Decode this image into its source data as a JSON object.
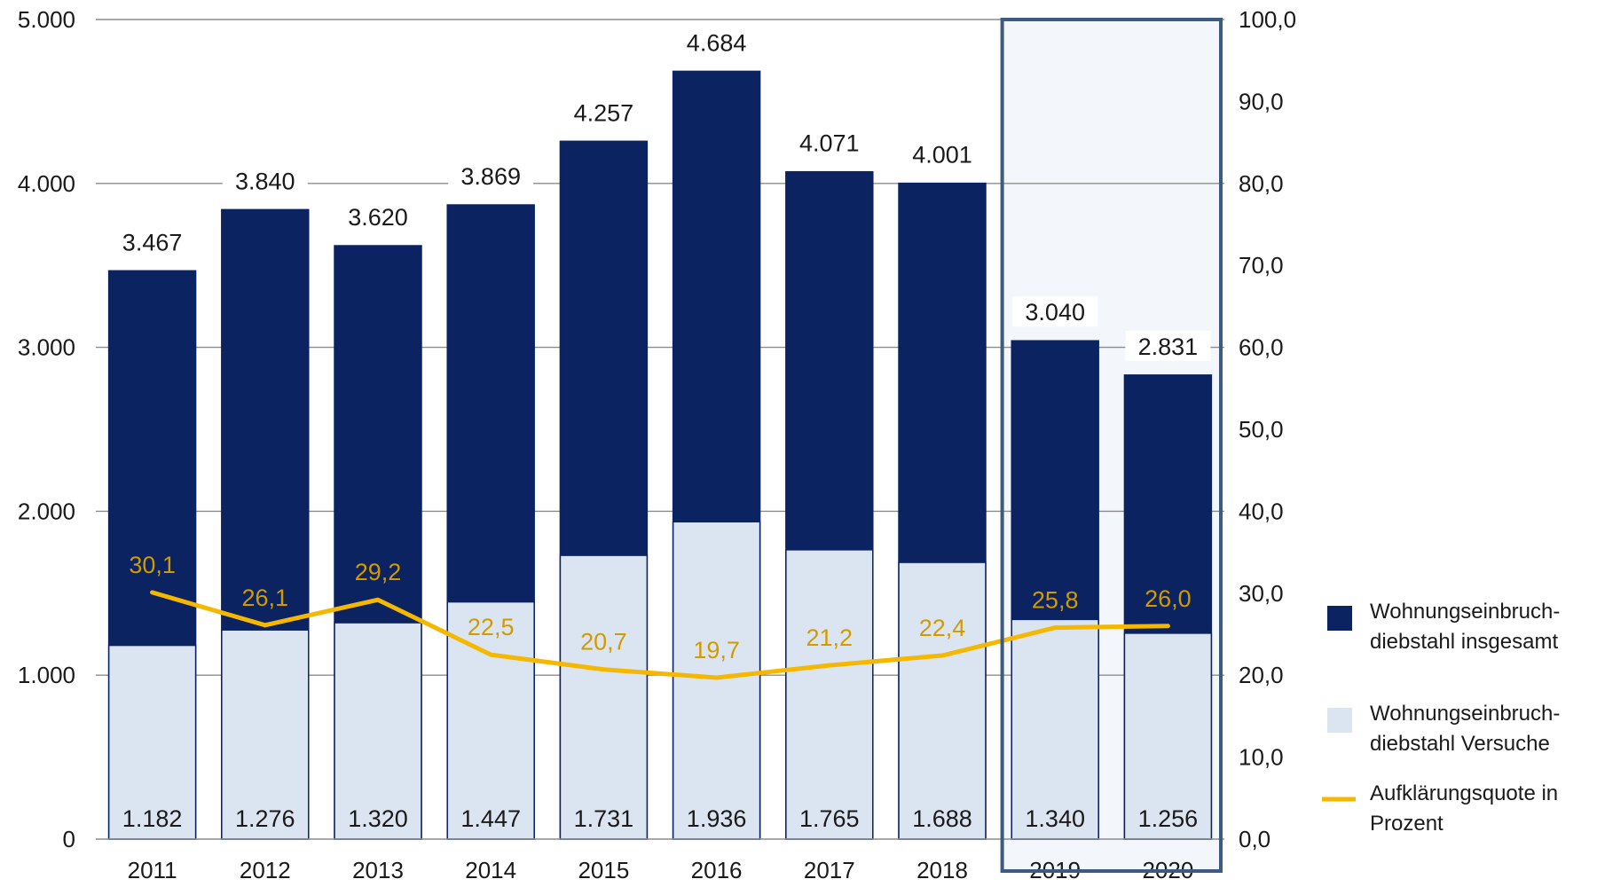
{
  "chart_data": {
    "type": "bar",
    "categories": [
      "2011",
      "2012",
      "2013",
      "2014",
      "2015",
      "2016",
      "2017",
      "2018",
      "2019",
      "2020"
    ],
    "series": [
      {
        "name": "Wohnungseinbruch-diebstahl insgesamt",
        "values": [
          3467,
          3840,
          3620,
          3869,
          4257,
          4684,
          4071,
          4001,
          3040,
          2831
        ],
        "labels": [
          "3.467",
          "3.840",
          "3.620",
          "3.869",
          "4.257",
          "4.684",
          "4.071",
          "4.001",
          "3.040",
          "2.831"
        ],
        "color": "#0b2360",
        "chart_type": "bar"
      },
      {
        "name": "Wohnungseinbruch-diebstahl Versuche",
        "values": [
          1182,
          1276,
          1320,
          1447,
          1731,
          1936,
          1765,
          1688,
          1340,
          1256
        ],
        "labels": [
          "1.182",
          "1.276",
          "1.320",
          "1.447",
          "1.731",
          "1.936",
          "1.765",
          "1.688",
          "1.340",
          "1.256"
        ],
        "color": "#dbe4f1",
        "chart_type": "bar"
      },
      {
        "name": "Aufklärungsquote in Prozent",
        "values": [
          30.1,
          26.1,
          29.2,
          22.5,
          20.7,
          19.7,
          21.2,
          22.4,
          25.8,
          26.0
        ],
        "labels": [
          "30,1",
          "26,1",
          "29,2",
          "22,5",
          "20,7",
          "19,7",
          "21,2",
          "22,4",
          "25,8",
          "26,0"
        ],
        "color": "#f5b800",
        "label_color": "#d19b00",
        "chart_type": "line",
        "axis": "right"
      }
    ],
    "y_left": {
      "ylim": [
        0,
        5000
      ],
      "ticks": [
        0,
        1000,
        2000,
        3000,
        4000,
        5000
      ],
      "tick_labels": [
        "0",
        "1.000",
        "2.000",
        "3.000",
        "4.000",
        "5.000"
      ]
    },
    "y_right": {
      "ylim": [
        0,
        100
      ],
      "ticks": [
        0,
        10,
        20,
        30,
        40,
        50,
        60,
        70,
        80,
        90,
        100
      ],
      "tick_labels": [
        "0,0",
        "10,0",
        "20,0",
        "30,0",
        "40,0",
        "50,0",
        "60,0",
        "70,0",
        "80,0",
        "90,0",
        "100,0"
      ]
    },
    "grid": true,
    "highlight_categories": [
      "2019",
      "2020"
    ],
    "highlight_color": "#3d5a80",
    "legend": [
      {
        "lines": [
          "Wohnungseinbruch-",
          "diebstahl insgesamt"
        ],
        "color": "#0b2360",
        "marker": "square"
      },
      {
        "lines": [
          "Wohnungseinbruch-",
          "diebstahl Versuche"
        ],
        "color": "#dbe4f1",
        "marker": "square"
      },
      {
        "lines": [
          "Aufklärungsquote in",
          "Prozent"
        ],
        "color": "#f5b800",
        "marker": "line"
      }
    ],
    "legend_position": "right"
  }
}
